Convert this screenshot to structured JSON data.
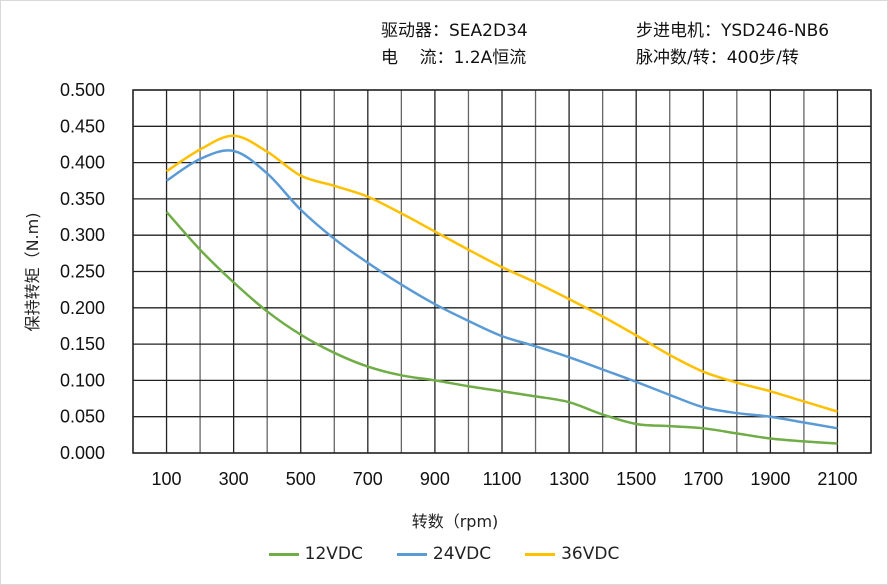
{
  "header": {
    "driver": "驱动器：SEA2D34",
    "motor": "步进电机：YSD246-NB6",
    "current": "电    流：1.2A恒流",
    "pulse": "脉冲数/转：400步/转"
  },
  "chart_data": {
    "type": "line",
    "xlabel": "转数（rpm)",
    "ylabel": "保持转矩（N.m)",
    "xlim": [
      0,
      2200
    ],
    "ylim": [
      0,
      0.5
    ],
    "grid": true,
    "legend_position": "bottom",
    "x_ticks": [
      "100",
      "300",
      "500",
      "700",
      "900",
      "1100",
      "1300",
      "1500",
      "1700",
      "1900",
      "2100"
    ],
    "y_ticks": [
      "0.000",
      "0.050",
      "0.100",
      "0.150",
      "0.200",
      "0.250",
      "0.300",
      "0.350",
      "0.400",
      "0.450",
      "0.500"
    ],
    "x": [
      100,
      200,
      300,
      400,
      500,
      600,
      700,
      800,
      900,
      1000,
      1100,
      1200,
      1300,
      1400,
      1500,
      1600,
      1700,
      1800,
      1900,
      2000,
      2100
    ],
    "series": [
      {
        "name": "12VDC",
        "color": "#70ad47",
        "values": [
          0.332,
          0.28,
          0.235,
          0.195,
          0.163,
          0.138,
          0.119,
          0.107,
          0.1,
          0.092,
          0.085,
          0.078,
          0.07,
          0.053,
          0.04,
          0.037,
          0.034,
          0.027,
          0.02,
          0.016,
          0.013
        ]
      },
      {
        "name": "24VDC",
        "color": "#5b9bd5",
        "values": [
          0.375,
          0.405,
          0.416,
          0.385,
          0.335,
          0.295,
          0.262,
          0.232,
          0.205,
          0.182,
          0.161,
          0.147,
          0.132,
          0.115,
          0.098,
          0.08,
          0.063,
          0.055,
          0.05,
          0.042,
          0.034
        ]
      },
      {
        "name": "36VDC",
        "color": "#ffc000",
        "values": [
          0.388,
          0.418,
          0.437,
          0.415,
          0.382,
          0.368,
          0.353,
          0.33,
          0.305,
          0.28,
          0.256,
          0.235,
          0.212,
          0.188,
          0.162,
          0.135,
          0.112,
          0.097,
          0.085,
          0.071,
          0.057
        ]
      }
    ]
  }
}
